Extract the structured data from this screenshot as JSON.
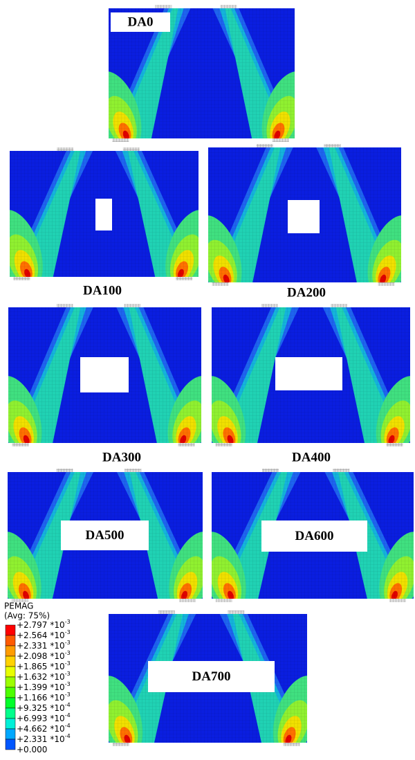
{
  "panels": [
    {
      "label": "DA0"
    },
    {
      "label": "DA100"
    },
    {
      "label": "DA200"
    },
    {
      "label": "DA300"
    },
    {
      "label": "DA400"
    },
    {
      "label": "DA500"
    },
    {
      "label": "DA600"
    },
    {
      "label": "DA700"
    }
  ],
  "legend": {
    "title": "PEMAG",
    "subtitle": "(Avg: 75%)",
    "entries": [
      {
        "mantissa": "+2.797",
        "base": "*10",
        "exponent": "-3"
      },
      {
        "mantissa": "+2.564",
        "base": "*10",
        "exponent": "-3"
      },
      {
        "mantissa": "+2.331",
        "base": "*10",
        "exponent": "-3"
      },
      {
        "mantissa": "+2.098",
        "base": "*10",
        "exponent": "-3"
      },
      {
        "mantissa": "+1.865",
        "base": "*10",
        "exponent": "-3"
      },
      {
        "mantissa": "+1.632",
        "base": "*10",
        "exponent": "-3"
      },
      {
        "mantissa": "+1.399",
        "base": "*10",
        "exponent": "-3"
      },
      {
        "mantissa": "+1.166",
        "base": "*10",
        "exponent": "-3"
      },
      {
        "mantissa": "+9.325",
        "base": "*10",
        "exponent": "-4"
      },
      {
        "mantissa": "+6.993",
        "base": "*10",
        "exponent": "-4"
      },
      {
        "mantissa": "+4.662",
        "base": "*10",
        "exponent": "-4"
      },
      {
        "mantissa": "+2.331",
        "base": "*10",
        "exponent": "-4"
      },
      {
        "mantissa": "+0.000"
      }
    ]
  }
}
